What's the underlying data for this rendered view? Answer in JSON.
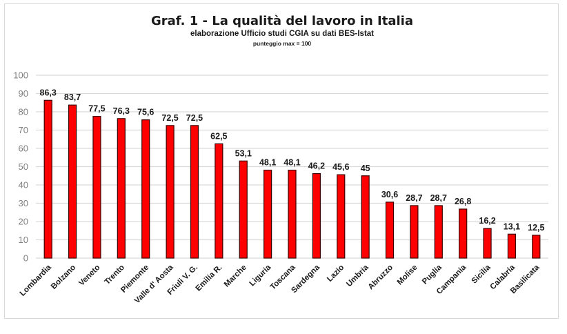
{
  "chart_data": {
    "type": "bar",
    "title": "Graf. 1 - La qualità del lavoro in Italia",
    "subtitle": "elaborazione Ufficio studi CGIA su dati BES-Istat",
    "note": "punteggio max = 100",
    "xlabel": "",
    "ylabel": "",
    "ylim": [
      0,
      100
    ],
    "yticks": [
      0,
      10,
      20,
      30,
      40,
      50,
      60,
      70,
      80,
      90,
      100
    ],
    "grid": true,
    "legend": "none",
    "categories": [
      "Lombardia",
      "Bolzano",
      "Veneto",
      "Trento",
      "Piemonte",
      "Valle d' Aosta",
      "Friuli V. G.",
      "Emilia R.",
      "Marche",
      "Liguria",
      "Toscana",
      "Sardegna",
      "Lazio",
      "Umbria",
      "Abruzzo",
      "Molise",
      "Puglia",
      "Campania",
      "Sicilia",
      "Calabria",
      "Basilicata"
    ],
    "values": [
      86.3,
      83.7,
      77.5,
      76.3,
      75.6,
      72.5,
      72.5,
      62.5,
      53.1,
      48.1,
      48.1,
      46.2,
      45.6,
      45,
      30.6,
      28.7,
      28.7,
      26.8,
      16.2,
      13.1,
      12.5
    ],
    "data_labels": [
      "86,3",
      "83,7",
      "77,5",
      "76,3",
      "75,6",
      "72,5",
      "72,5",
      "62,5",
      "53,1",
      "48,1",
      "48,1",
      "46,2",
      "45,6",
      "45",
      "30,6",
      "28,7",
      "28,7",
      "26,8",
      "16,2",
      "13,1",
      "12,5"
    ],
    "bar_color": "#ff0000",
    "bar_border_color": "#3a0000",
    "grid_color": "#d9d9d9"
  }
}
